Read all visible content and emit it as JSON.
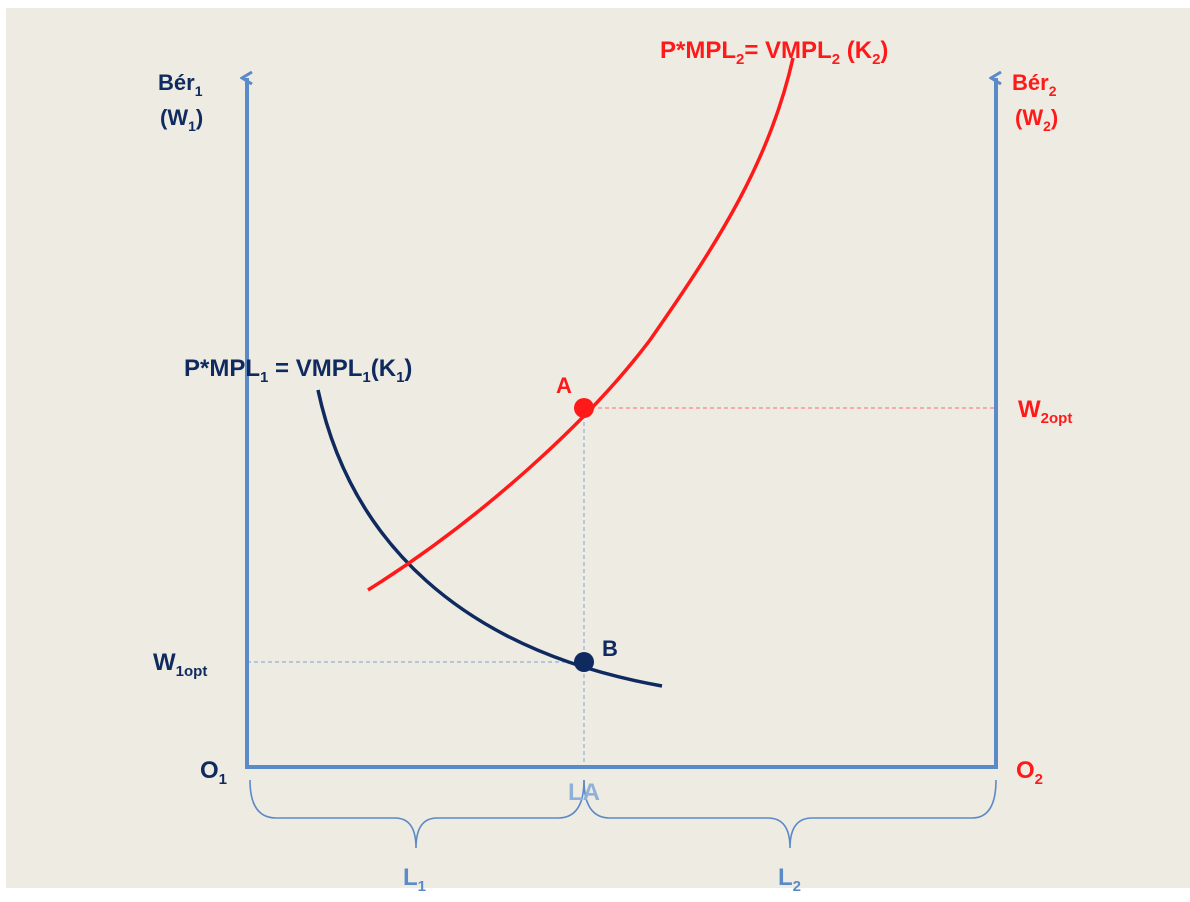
{
  "colors": {
    "background": "#eeebe2",
    "navy": "#0f2a5e",
    "red": "#ff1a1a",
    "axis_blue": "#5b8ac8",
    "light_blue": "#8fb0d9"
  },
  "left_axis": {
    "label_main": "Bér",
    "label_sub": "1",
    "label2_open": "(W",
    "label2_sub": "1",
    "label2_close": ")"
  },
  "right_axis": {
    "label_main": "Bér",
    "label_sub": "2",
    "label2_open": "(W",
    "label2_sub": "2",
    "label2_close": ")"
  },
  "curve1_label": {
    "p1": "P*MPL",
    "s1": "1",
    "p2": " = VMPL",
    "s2": "1",
    "p3": "(K",
    "s3": "1",
    "p4": ")"
  },
  "curve2_label": {
    "p1": "P*MPL",
    "s1": "2",
    "p2": "= VMPL",
    "s2": "2",
    "p3": " (K",
    "s3": "2",
    "p4": ")"
  },
  "point_a": "A",
  "point_b": "B",
  "w1opt": {
    "main": "W",
    "sub": "1opt"
  },
  "w2opt": {
    "main": "W",
    "sub": "2opt"
  },
  "origin1": {
    "main": "O",
    "sub": "1"
  },
  "origin2": {
    "main": "O",
    "sub": "2"
  },
  "la_label": "LA",
  "l1": {
    "main": "L",
    "sub": "1"
  },
  "l2": {
    "main": "L",
    "sub": "2"
  }
}
